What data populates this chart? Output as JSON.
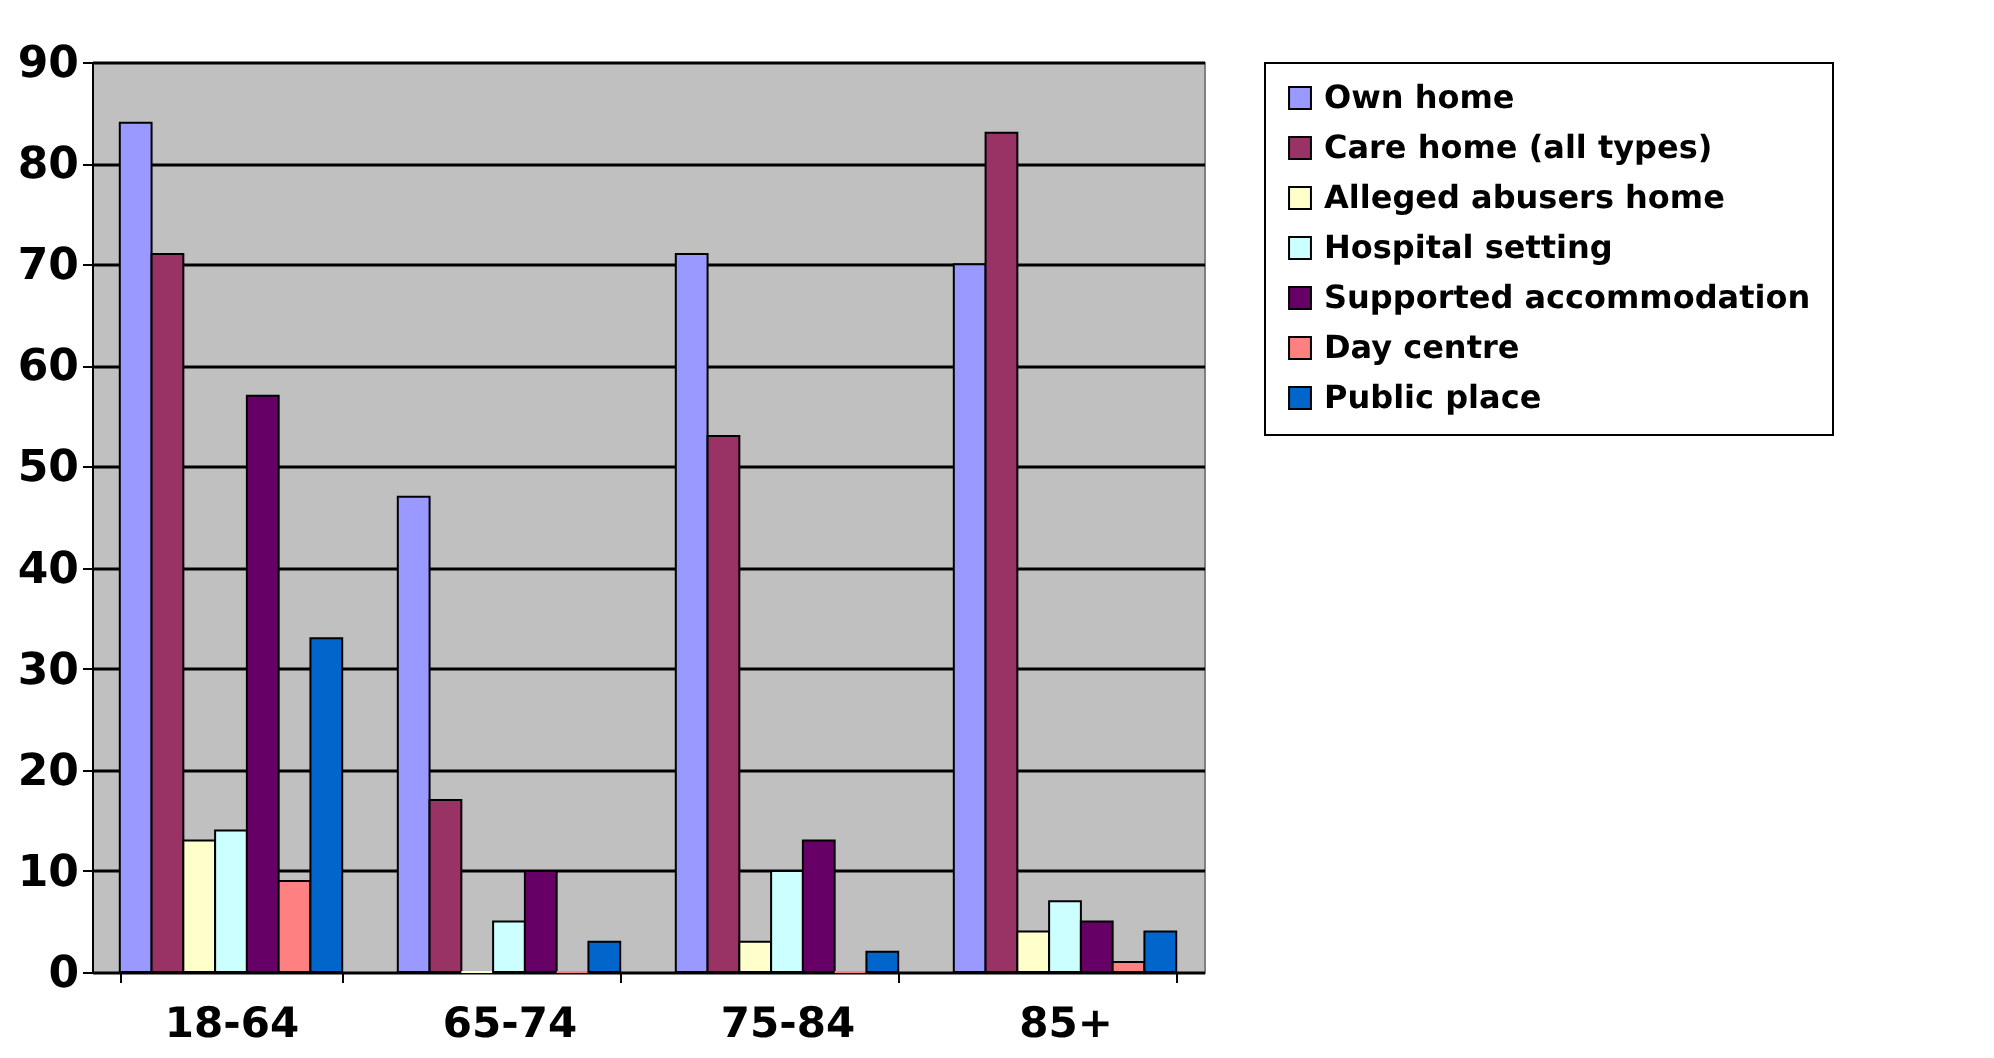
{
  "chart_data": {
    "type": "bar",
    "categories": [
      "18-64",
      "65-74",
      "75-84",
      "85+"
    ],
    "series": [
      {
        "name": "Own home",
        "color": "#9999ff",
        "values": [
          84,
          47,
          71,
          70
        ]
      },
      {
        "name": "Care home (all types)",
        "color": "#993366",
        "values": [
          71,
          17,
          53,
          83
        ]
      },
      {
        "name": "Alleged abusers home",
        "color": "#ffffcc",
        "values": [
          13,
          0,
          3,
          4
        ]
      },
      {
        "name": " Hospital setting",
        "color": "#ccffff",
        "values": [
          14,
          5,
          10,
          7
        ]
      },
      {
        "name": "Supported accommodation",
        "color": "#660066",
        "values": [
          57,
          10,
          13,
          5
        ]
      },
      {
        "name": "Day centre",
        "color": "#ff8080",
        "values": [
          9,
          0,
          0,
          1
        ]
      },
      {
        "name": "Public place",
        "color": "#0066cc",
        "values": [
          33,
          3,
          2,
          4
        ]
      }
    ],
    "ylim": [
      0,
      90
    ],
    "yticks": [
      0,
      10,
      20,
      30,
      40,
      50,
      60,
      70,
      80,
      90
    ],
    "grid": "y",
    "legend": "right"
  }
}
